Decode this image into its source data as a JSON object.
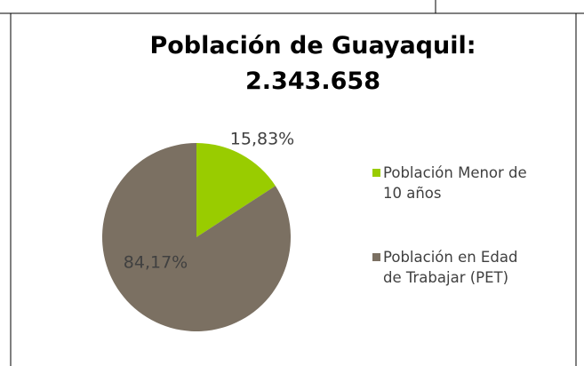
{
  "chart_data": {
    "type": "pie",
    "title": "Población de Guayaquil: 2.343.658",
    "categories": [
      "Población Menor de 10 años",
      "Población en Edad de Trabajar (PET)"
    ],
    "values": [
      15.83,
      84.17
    ],
    "value_labels": [
      "15,83%",
      "84,17%"
    ],
    "colors": [
      "#99cc00",
      "#7b7062"
    ],
    "legend": "right"
  }
}
